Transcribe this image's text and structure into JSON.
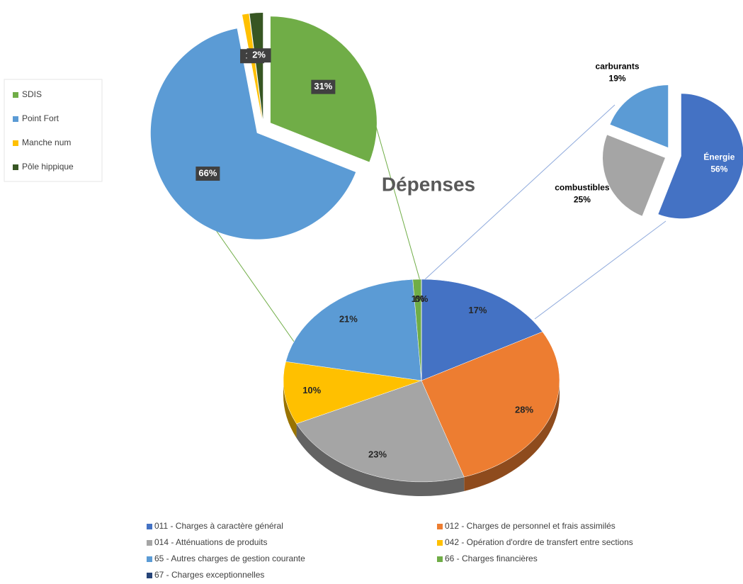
{
  "chart_data": [
    {
      "type": "pie",
      "title": "Dépenses",
      "categories": [
        "011 - Charges à caractère général",
        "012 - Charges de personnel et frais assimilés",
        "014 - Atténuations de produits",
        "042 - Opération d'ordre de transfert entre sections",
        "65 - Autres charges de gestion courante",
        "66 - Charges financières",
        "67 - Charges exceptionnelles"
      ],
      "values": [
        17,
        28,
        23,
        10,
        21,
        1,
        0
      ],
      "value_labels": [
        "17%",
        "28%",
        "23%",
        "10%",
        "21%",
        "1%",
        "0%"
      ],
      "colors": [
        "#4472c4",
        "#ed7d31",
        "#a5a5a5",
        "#ffc000",
        "#5b9bd5",
        "#70ad47",
        "#264478"
      ],
      "legend": "bottom"
    },
    {
      "type": "pie",
      "categories": [
        "SDIS",
        "Point Fort",
        "Manche num",
        "Pôle hippique"
      ],
      "values": [
        31,
        66,
        1,
        2
      ],
      "value_labels": [
        "31%",
        "66%",
        "1%",
        "2%"
      ],
      "colors": [
        "#70ad47",
        "#5b9bd5",
        "#ffc000",
        "#375623"
      ],
      "legend": "left"
    },
    {
      "type": "pie",
      "categories": [
        "Énergie",
        "combustibles",
        "carburants"
      ],
      "values": [
        56,
        25,
        19
      ],
      "value_labels": [
        "56%",
        "25%",
        "19%"
      ],
      "colors": [
        "#4472c4",
        "#a5a5a5",
        "#5b9bd5"
      ]
    }
  ]
}
